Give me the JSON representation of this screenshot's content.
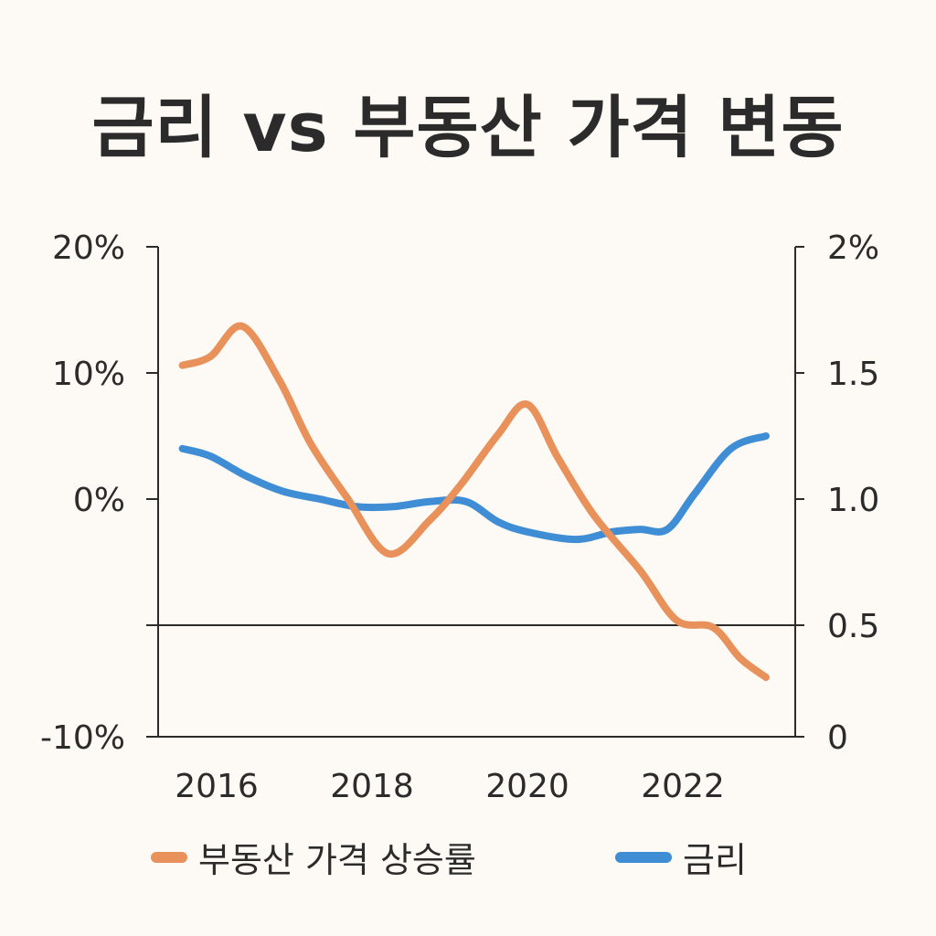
{
  "chart_data": {
    "type": "line",
    "title": "금리 vs 부동산 가격 변동",
    "x_ticks": [
      "2016",
      "2018",
      "2020",
      "2022"
    ],
    "xlim": [
      2015.5,
      2023.2
    ],
    "left_axis": {
      "ticks": [
        20,
        10,
        0,
        -10
      ],
      "tick_labels": [
        "20%",
        "10%",
        "0%",
        "-10%"
      ]
    },
    "right_axis": {
      "ticks": [
        2,
        1.5,
        1.0,
        0.5,
        0
      ],
      "tick_labels": [
        "2%",
        "1.5",
        "1.0",
        "0.5",
        "0"
      ]
    },
    "reference_line_right": 0.5,
    "grid": false,
    "legend_position": "bottom",
    "series": [
      {
        "name": "부동산 가격 상승률",
        "axis": "left",
        "color": "#e8915a",
        "x": [
          2015.56,
          2015.92,
          2016.33,
          2016.8,
          2017.21,
          2017.68,
          2018.21,
          2018.74,
          2019.15,
          2019.62,
          2020.0,
          2020.39,
          2020.86,
          2021.45,
          2021.92,
          2022.39,
          2022.74,
          2023.07
        ],
        "y": [
          10.6,
          11.3,
          13.7,
          9.5,
          4.4,
          0.1,
          -2.3,
          -0.9,
          1.2,
          5.1,
          7.5,
          3.3,
          -0.7,
          -3.0,
          -5.1,
          -5.4,
          -6.7,
          -7.5
        ]
      },
      {
        "name": "금리",
        "axis": "right",
        "color": "#3f8dd4",
        "x": [
          2015.56,
          2015.92,
          2016.39,
          2016.86,
          2017.33,
          2017.8,
          2018.27,
          2018.74,
          2019.21,
          2019.62,
          2020.0,
          2020.62,
          2021.09,
          2021.45,
          2021.8,
          2022.15,
          2022.62,
          2023.07
        ],
        "y": [
          1.2,
          1.17,
          1.09,
          1.03,
          1.0,
          0.97,
          0.97,
          0.99,
          0.99,
          0.91,
          0.87,
          0.84,
          0.87,
          0.88,
          0.88,
          1.02,
          1.2,
          1.25
        ]
      }
    ]
  }
}
